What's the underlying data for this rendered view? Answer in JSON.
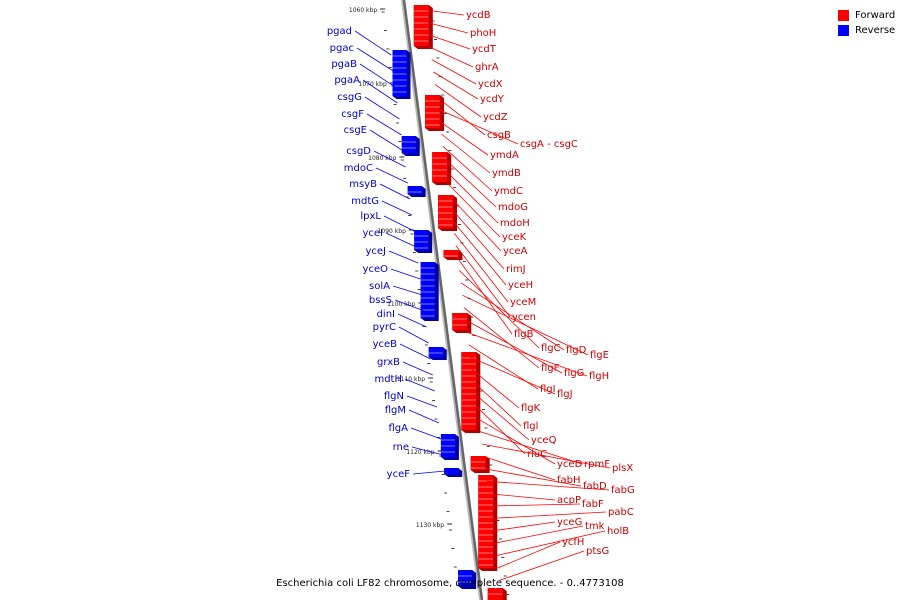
{
  "legend": {
    "forward": {
      "label": "Forward",
      "color": "#ff0000"
    },
    "reverse": {
      "label": "Reverse",
      "color": "#0000ff"
    }
  },
  "caption": "Escherichia coli LF82 chromosome, complete sequence. - 0..4773108",
  "scale_labels": [
    "1060 kbp",
    "1070 kbp",
    "1080 kbp",
    "1090 kbp",
    "1100 kbp",
    "1110 kbp",
    "1120 kbp",
    "1130 kbp"
  ],
  "forward_genes": [
    "ycdB",
    "phoH",
    "ycdT",
    "ghrA",
    "ycdX",
    "ycdY",
    "ycdZ",
    "csgB",
    "csgA - csgC",
    "ymdA",
    "ymdB",
    "ymdC",
    "mdoG",
    "mdoH",
    "yceK",
    "yceA",
    "rimJ",
    "yceH",
    "yceM",
    "ycen",
    "flgB",
    "flgC",
    "flgD",
    "flgE",
    "flgF",
    "flgG",
    "flgH",
    "flgI",
    "flgJ",
    "flgK",
    "flgl",
    "yceQ",
    "rluC",
    "yceD",
    "rpmF",
    "plsX",
    "fabH",
    "fabD",
    "fabG",
    "acpP",
    "fabF",
    "pabC",
    "yceG",
    "tmk",
    "holB",
    "ycfH",
    "ptsG"
  ],
  "reverse_genes": [
    "pgad",
    "pgac",
    "pgaB",
    "pgaA",
    "csgG",
    "csgF",
    "csgE",
    "csgD",
    "mdoC",
    "msyB",
    "mdtG",
    "lpxL",
    "yceI",
    "yceJ",
    "yceO",
    "solA",
    "bssS",
    "dinI",
    "pyrC",
    "yceB",
    "grxB",
    "mdtH",
    "flgN",
    "flgM",
    "flgA",
    "rne",
    "yceF"
  ]
}
